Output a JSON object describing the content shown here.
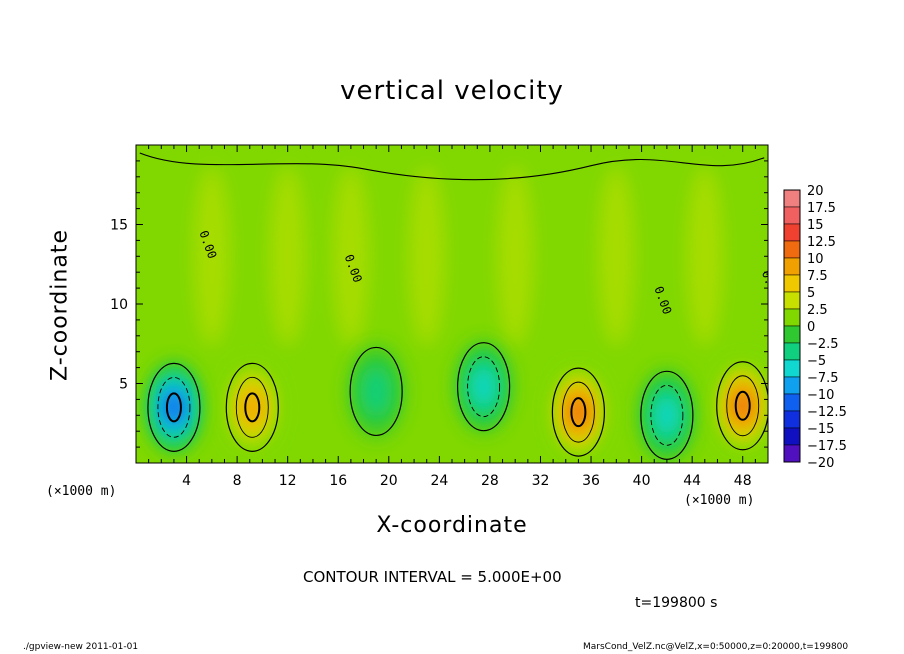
{
  "chart_data": {
    "type": "heatmap",
    "title": "vertical velocity",
    "xlabel": "X-coordinate",
    "ylabel": "Z-coordinate",
    "x_unit_label": "(×1000 m)",
    "xlim": [
      0,
      50
    ],
    "ylim": [
      0,
      20
    ],
    "x_ticks": [
      4,
      8,
      12,
      16,
      20,
      24,
      28,
      32,
      36,
      40,
      44,
      48
    ],
    "y_ticks": [
      5,
      10,
      15
    ],
    "colorbar": {
      "levels": [
        "20",
        "17.5",
        "15",
        "12.5",
        "10",
        "7.5",
        "5",
        "2.5",
        "0",
        "−2.5",
        "−5",
        "−7.5",
        "−10",
        "−12.5",
        "−15",
        "−17.5",
        "−20"
      ],
      "colors": [
        "#f08080",
        "#f06060",
        "#f04030",
        "#f06a10",
        "#f0a000",
        "#f0c800",
        "#c8e000",
        "#80d800",
        "#30c830",
        "#10d080",
        "#10d8d0",
        "#10a0f0",
        "#1060f0",
        "#1030e0",
        "#1010c0",
        "#5010c0"
      ]
    },
    "contour_label": "0.00",
    "blobs": [
      {
        "x": 3.0,
        "z": 3.5,
        "w": -11
      },
      {
        "x": 9.2,
        "z": 3.5,
        "w": 10
      },
      {
        "x": 19.0,
        "z": 4.5,
        "w": -3
      },
      {
        "x": 27.5,
        "z": 4.8,
        "w": -7
      },
      {
        "x": 35.0,
        "z": 3.2,
        "w": 12
      },
      {
        "x": 42.0,
        "z": 3.0,
        "w": -7
      },
      {
        "x": 48.0,
        "z": 3.6,
        "w": 12
      }
    ]
  },
  "annotations": {
    "contour_interval": "CONTOUR INTERVAL = 5.000E+00",
    "time": "t=199800  s"
  },
  "footer": {
    "left": "./gpview-new   2011-01-01",
    "right": "MarsCond_VelZ.nc@VelZ,x=0:50000,z=0:20000,t=199800"
  }
}
